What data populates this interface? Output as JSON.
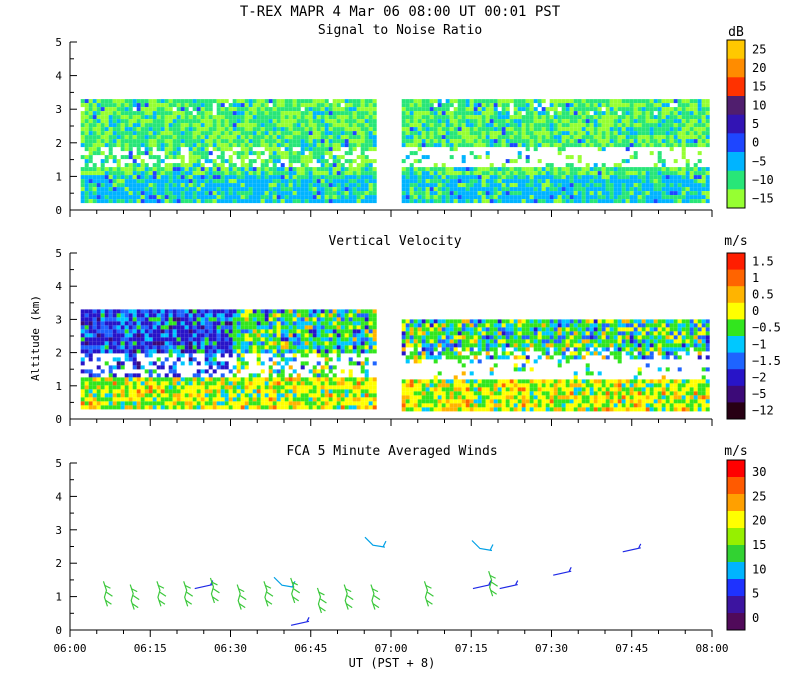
{
  "header": "T-REX   MAPR   4 Mar 06   08:00 UT   00:01   PST",
  "xlabel": "UT  (PST + 8)",
  "ylabel": "Altitude (km)",
  "x_ticks": [
    "06:00",
    "06:15",
    "06:30",
    "06:45",
    "07:00",
    "07:15",
    "07:30",
    "07:45",
    "08:00"
  ],
  "chart_data": [
    {
      "type": "heatmap",
      "title": "Signal to Noise Ratio",
      "xlim": [
        "06:00",
        "08:00"
      ],
      "ylim": [
        0,
        5
      ],
      "y_ticks": [
        "0",
        "1",
        "2",
        "3",
        "4",
        "5"
      ],
      "colorbar_unit": "dB",
      "colorbar_labels": [
        "25",
        "20",
        "15",
        "10",
        "5",
        "0",
        "−5",
        "−10",
        "−15"
      ],
      "colorbar_colors": [
        "#ffc800",
        "#ff8c00",
        "#ff3200",
        "#501e6e",
        "#3214b4",
        "#1e46ff",
        "#00b4ff",
        "#28e678",
        "#96ff32"
      ],
      "segments": [
        {
          "x_start": "06:02",
          "x_end": "06:57",
          "alt_bottom_km": 0.3,
          "alt_top_km": 3.3
        },
        {
          "x_start": "07:02",
          "x_end": "07:59",
          "alt_bottom_km": 0.3,
          "alt_top_km": 3.3
        }
      ],
      "dominant_value_db": "-10 to -15",
      "gap_band_alt_km": [
        1.4,
        2.0
      ]
    },
    {
      "type": "heatmap",
      "title": "Vertical Velocity",
      "xlim": [
        "06:00",
        "08:00"
      ],
      "ylim": [
        0,
        5
      ],
      "y_ticks": [
        "0",
        "1",
        "2",
        "3",
        "4",
        "5"
      ],
      "colorbar_unit": "m/s",
      "colorbar_labels": [
        "1.5",
        "1",
        "0.5",
        "0",
        "−0.5",
        "−1",
        "−1.5",
        "−2",
        "−5",
        "−12"
      ],
      "colorbar_colors": [
        "#ff1e00",
        "#ff6400",
        "#ffb400",
        "#ffff00",
        "#32e61e",
        "#00c8ff",
        "#1e64ff",
        "#2814c8",
        "#3c0a78",
        "#280014"
      ],
      "segments": [
        {
          "x_start": "06:02",
          "x_end": "06:57",
          "alt_bottom_km": 0.3,
          "alt_top_km": 3.3
        },
        {
          "x_start": "07:02",
          "x_end": "07:59",
          "alt_bottom_km": 0.3,
          "alt_top_km": 3.0
        }
      ],
      "upper_layer_early_m_s": "-1 to -2",
      "lower_layer_m_s": "-0.5 to 0.5"
    },
    {
      "type": "barbs",
      "title": "FCA 5 Minute Averaged Winds",
      "xlim": [
        "06:00",
        "08:00"
      ],
      "ylim": [
        0,
        5
      ],
      "y_ticks": [
        "0",
        "1",
        "2",
        "3",
        "4",
        "5"
      ],
      "colorbar_unit": "m/s",
      "colorbar_labels": [
        "30",
        "25",
        "20",
        "15",
        "10",
        "5",
        "0"
      ],
      "colorbar_colors": [
        "#ff0000",
        "#ff5a00",
        "#ffa000",
        "#ffff00",
        "#96f000",
        "#32d232",
        "#00b4ff",
        "#1e32ff",
        "#3c14a0",
        "#500a5a"
      ],
      "barbs": [
        {
          "t": "06:07",
          "alt_km": 1.1,
          "speed_m_s": 15
        },
        {
          "t": "06:12",
          "alt_km": 1.0,
          "speed_m_s": 15
        },
        {
          "t": "06:17",
          "alt_km": 1.1,
          "speed_m_s": 15
        },
        {
          "t": "06:22",
          "alt_km": 1.1,
          "speed_m_s": 15
        },
        {
          "t": "06:25",
          "alt_km": 1.3,
          "speed_m_s": 5
        },
        {
          "t": "06:27",
          "alt_km": 1.2,
          "speed_m_s": 15
        },
        {
          "t": "06:32",
          "alt_km": 1.0,
          "speed_m_s": 15
        },
        {
          "t": "06:37",
          "alt_km": 1.1,
          "speed_m_s": 15
        },
        {
          "t": "06:40",
          "alt_km": 1.4,
          "speed_m_s": 10
        },
        {
          "t": "06:42",
          "alt_km": 1.2,
          "speed_m_s": 15
        },
        {
          "t": "06:43",
          "alt_km": 0.2,
          "speed_m_s": 5
        },
        {
          "t": "06:47",
          "alt_km": 0.9,
          "speed_m_s": 15
        },
        {
          "t": "06:52",
          "alt_km": 1.0,
          "speed_m_s": 15
        },
        {
          "t": "06:57",
          "alt_km": 1.0,
          "speed_m_s": 15
        },
        {
          "t": "06:57",
          "alt_km": 2.6,
          "speed_m_s": 10
        },
        {
          "t": "07:07",
          "alt_km": 1.1,
          "speed_m_s": 15
        },
        {
          "t": "07:17",
          "alt_km": 1.3,
          "speed_m_s": 5
        },
        {
          "t": "07:19",
          "alt_km": 1.4,
          "speed_m_s": 15
        },
        {
          "t": "07:17",
          "alt_km": 2.5,
          "speed_m_s": 10
        },
        {
          "t": "07:22",
          "alt_km": 1.3,
          "speed_m_s": 5
        },
        {
          "t": "07:32",
          "alt_km": 1.7,
          "speed_m_s": 5
        },
        {
          "t": "07:45",
          "alt_km": 2.4,
          "speed_m_s": 5
        }
      ]
    }
  ]
}
